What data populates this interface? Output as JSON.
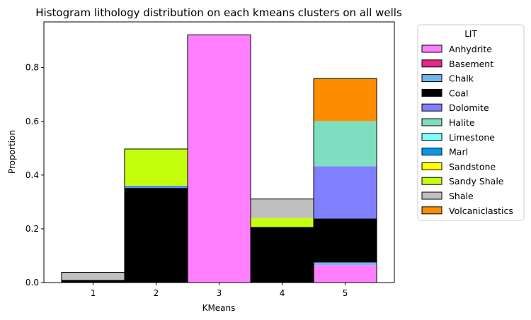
{
  "chart_data": {
    "type": "bar",
    "stacked": true,
    "title": "Histogram lithology distribution on each kmeans clusters on all wells",
    "xlabel": "KMeans",
    "ylabel": "Proportion",
    "categories": [
      "1",
      "2",
      "3",
      "4",
      "5"
    ],
    "ylim": [
      0,
      0.97
    ],
    "yticks": [
      0.0,
      0.2,
      0.4,
      0.6,
      0.8
    ],
    "ytick_labels": [
      "0.0",
      "0.2",
      "0.4",
      "0.6",
      "0.8"
    ],
    "grid": false,
    "legend": {
      "title": "LIT",
      "placement": "outside-right"
    },
    "series": [
      {
        "name": "Anhydrite",
        "color": "#ff7fff",
        "values": [
          0.0,
          0.0,
          0.922,
          0.0,
          0.065
        ]
      },
      {
        "name": "Basement",
        "color": "#e7298a",
        "values": [
          0.0,
          0.0,
          0.0,
          0.0,
          0.0
        ]
      },
      {
        "name": "Chalk",
        "color": "#74b6ee",
        "values": [
          0.0,
          0.0,
          0.0,
          0.0,
          0.01
        ]
      },
      {
        "name": "Coal",
        "color": "#000000",
        "values": [
          0.01,
          0.352,
          0.0,
          0.207,
          0.163
        ]
      },
      {
        "name": "Dolomite",
        "color": "#8080ff",
        "values": [
          0.0,
          0.004,
          0.0,
          0.0,
          0.195
        ]
      },
      {
        "name": "Halite",
        "color": "#7ddfc0",
        "values": [
          0.0,
          0.0,
          0.0,
          0.0,
          0.168
        ]
      },
      {
        "name": "Limestone",
        "color": "#80ffff",
        "values": [
          0.0,
          0.0,
          0.0,
          0.0,
          0.0
        ]
      },
      {
        "name": "Marl",
        "color": "#0a97eb",
        "values": [
          0.0,
          0.004,
          0.0,
          0.0,
          0.0
        ]
      },
      {
        "name": "Sandstone",
        "color": "#ffff00",
        "values": [
          0.0,
          0.0,
          0.0,
          0.0,
          0.0
        ]
      },
      {
        "name": "Sandy Shale",
        "color": "#c4ff0e",
        "values": [
          0.0,
          0.137,
          0.0,
          0.033,
          0.0
        ]
      },
      {
        "name": "Shale",
        "color": "#bfbfbf",
        "values": [
          0.028,
          0.0,
          0.0,
          0.071,
          0.0
        ]
      },
      {
        "name": "Volcaniclastics",
        "color": "#ff8c00",
        "values": [
          0.0,
          0.0,
          0.0,
          0.0,
          0.158
        ]
      }
    ]
  }
}
